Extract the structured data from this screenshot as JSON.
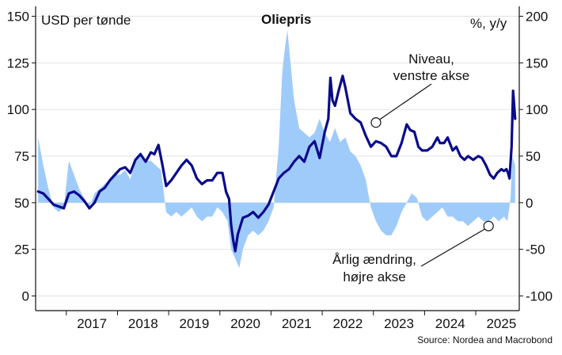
{
  "chart_data": {
    "type": "line",
    "title": "Oliepris",
    "left_axis_label": "USD per tønde",
    "right_axis_label": "%, y/y",
    "source": "Source: Nordea and Macrobond",
    "x_tick_labels": [
      "2017",
      "2018",
      "2019",
      "2020",
      "2021",
      "2022",
      "2023",
      "2024",
      "2025"
    ],
    "left_ylim": [
      0,
      155
    ],
    "right_ylim": [
      -100,
      200
    ],
    "left_ticks": [
      0,
      25,
      50,
      75,
      100,
      125,
      150
    ],
    "right_ticks": [
      -100,
      -50,
      0,
      50,
      100,
      150,
      200
    ],
    "xlim": [
      2016.4,
      2025.85
    ],
    "grid": "horizontal",
    "colors": {
      "level": "#0a0a8c",
      "change": "#9fcbfa",
      "grid": "#e2e2e2"
    },
    "annotations": [
      {
        "lines": [
          "Niveau,",
          "venstre akse"
        ],
        "x": 2023.05,
        "y": 93,
        "axis": "left"
      },
      {
        "lines": [
          "Årlig ændring,",
          "højre akse"
        ],
        "x": 2025.25,
        "y": -25,
        "axis": "right"
      }
    ],
    "series": [
      {
        "name": "Niveau, venstre akse",
        "axis": "left",
        "x": [
          2016.45,
          2016.55,
          2016.65,
          2016.75,
          2016.85,
          2016.95,
          2017.05,
          2017.15,
          2017.25,
          2017.35,
          2017.45,
          2017.55,
          2017.65,
          2017.75,
          2017.85,
          2017.95,
          2018.05,
          2018.15,
          2018.25,
          2018.35,
          2018.45,
          2018.55,
          2018.65,
          2018.72,
          2018.8,
          2018.88,
          2018.95,
          2019.05,
          2019.15,
          2019.25,
          2019.35,
          2019.45,
          2019.55,
          2019.65,
          2019.75,
          2019.85,
          2019.95,
          2020.05,
          2020.12,
          2020.18,
          2020.22,
          2020.26,
          2020.3,
          2020.35,
          2020.45,
          2020.55,
          2020.65,
          2020.75,
          2020.85,
          2020.95,
          2021.05,
          2021.15,
          2021.25,
          2021.35,
          2021.45,
          2021.55,
          2021.65,
          2021.75,
          2021.85,
          2021.95,
          2022.05,
          2022.12,
          2022.16,
          2022.2,
          2022.25,
          2022.32,
          2022.4,
          2022.45,
          2022.5,
          2022.55,
          2022.65,
          2022.75,
          2022.85,
          2022.95,
          2023.05,
          2023.15,
          2023.25,
          2023.35,
          2023.45,
          2023.55,
          2023.65,
          2023.72,
          2023.8,
          2023.88,
          2023.95,
          2024.05,
          2024.15,
          2024.25,
          2024.3,
          2024.38,
          2024.45,
          2024.55,
          2024.62,
          2024.7,
          2024.78,
          2024.85,
          2024.95,
          2025.05,
          2025.12,
          2025.2,
          2025.28,
          2025.35,
          2025.42,
          2025.5,
          2025.55,
          2025.6,
          2025.63,
          2025.66,
          2025.7,
          2025.73,
          2025.77
        ],
        "values": [
          56,
          55,
          52,
          49,
          48,
          47,
          55,
          56,
          54,
          51,
          47,
          50,
          56,
          58,
          62,
          65,
          68,
          69,
          66,
          73,
          76,
          72,
          77,
          76,
          81,
          70,
          59,
          62,
          66,
          70,
          73,
          70,
          63,
          60,
          62,
          62,
          66,
          66,
          56,
          52,
          38,
          30,
          24,
          33,
          42,
          43,
          45,
          42,
          45,
          49,
          56,
          63,
          66,
          68,
          72,
          75,
          72,
          80,
          83,
          74,
          88,
          95,
          117,
          105,
          102,
          110,
          118,
          112,
          105,
          98,
          95,
          93,
          86,
          80,
          83,
          82,
          80,
          75,
          75,
          82,
          92,
          89,
          88,
          80,
          78,
          78,
          80,
          85,
          82,
          82,
          85,
          78,
          80,
          75,
          73,
          75,
          73,
          75,
          74,
          70,
          65,
          63,
          66,
          68,
          67,
          68,
          66,
          63,
          80,
          110,
          95
        ]
      },
      {
        "name": "Årlig ændring, højre akse",
        "axis": "right",
        "x": [
          2016.45,
          2016.55,
          2016.65,
          2016.75,
          2016.85,
          2016.95,
          2017.05,
          2017.15,
          2017.25,
          2017.35,
          2017.45,
          2017.55,
          2017.65,
          2017.75,
          2017.85,
          2017.95,
          2018.05,
          2018.15,
          2018.25,
          2018.35,
          2018.45,
          2018.55,
          2018.65,
          2018.75,
          2018.85,
          2018.95,
          2019.05,
          2019.15,
          2019.25,
          2019.35,
          2019.45,
          2019.55,
          2019.65,
          2019.75,
          2019.85,
          2019.95,
          2020.05,
          2020.15,
          2020.22,
          2020.3,
          2020.38,
          2020.45,
          2020.55,
          2020.65,
          2020.75,
          2020.85,
          2020.95,
          2021.05,
          2021.15,
          2021.22,
          2021.28,
          2021.32,
          2021.38,
          2021.45,
          2021.55,
          2021.65,
          2021.75,
          2021.85,
          2021.95,
          2022.05,
          2022.15,
          2022.25,
          2022.35,
          2022.45,
          2022.55,
          2022.65,
          2022.75,
          2022.85,
          2022.95,
          2023.05,
          2023.15,
          2023.25,
          2023.35,
          2023.45,
          2023.55,
          2023.65,
          2023.75,
          2023.85,
          2023.95,
          2024.05,
          2024.15,
          2024.25,
          2024.35,
          2024.45,
          2024.55,
          2024.65,
          2024.75,
          2024.85,
          2024.95,
          2025.05,
          2025.15,
          2025.25,
          2025.35,
          2025.45,
          2025.55,
          2025.62,
          2025.68,
          2025.72,
          2025.77
        ],
        "values": [
          70,
          40,
          15,
          -5,
          -10,
          -5,
          45,
          30,
          15,
          5,
          -5,
          10,
          15,
          20,
          25,
          30,
          30,
          35,
          25,
          45,
          55,
          45,
          45,
          40,
          35,
          -10,
          -15,
          -10,
          -15,
          -10,
          -5,
          -15,
          -20,
          -15,
          -15,
          -5,
          -10,
          -20,
          -50,
          -60,
          -70,
          -50,
          -35,
          -30,
          -35,
          -30,
          -20,
          -5,
          60,
          140,
          170,
          185,
          150,
          110,
          80,
          75,
          70,
          75,
          90,
          75,
          65,
          80,
          65,
          70,
          55,
          50,
          40,
          25,
          -5,
          -20,
          -30,
          -35,
          -35,
          -25,
          -10,
          0,
          10,
          5,
          -15,
          -20,
          -15,
          -10,
          -5,
          -15,
          -15,
          -20,
          -20,
          -25,
          -20,
          -15,
          -20,
          -20,
          -15,
          -20,
          -15,
          -20,
          5,
          50,
          40
        ]
      }
    ]
  }
}
